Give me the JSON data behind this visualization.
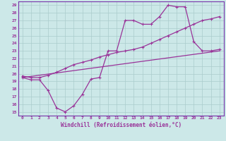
{
  "xlabel": "Windchill (Refroidissement éolien,°C)",
  "bg_color": "#cce8e8",
  "grid_color": "#aacccc",
  "line_color": "#993399",
  "border_color": "#7733aa",
  "xlim": [
    -0.5,
    23.5
  ],
  "ylim": [
    14.5,
    29.5
  ],
  "xticks": [
    0,
    1,
    2,
    3,
    4,
    5,
    6,
    7,
    8,
    9,
    10,
    11,
    12,
    13,
    14,
    15,
    16,
    17,
    18,
    19,
    20,
    21,
    22,
    23
  ],
  "yticks": [
    15,
    16,
    17,
    18,
    19,
    20,
    21,
    22,
    23,
    24,
    25,
    26,
    27,
    28,
    29
  ],
  "line1_x": [
    0,
    1,
    2,
    3,
    4,
    5,
    6,
    7,
    8,
    9,
    10,
    11,
    12,
    13,
    14,
    15,
    16,
    17,
    18,
    19,
    20,
    21,
    22,
    23
  ],
  "line1_y": [
    19.5,
    19.2,
    19.2,
    17.8,
    15.5,
    15.0,
    15.8,
    17.3,
    19.3,
    19.5,
    23.0,
    23.0,
    27.0,
    27.0,
    26.5,
    26.5,
    27.5,
    29.0,
    28.8,
    28.8,
    24.2,
    23.0,
    23.0,
    23.2
  ],
  "line2_x": [
    0,
    1,
    2,
    3,
    4,
    5,
    6,
    7,
    8,
    9,
    10,
    11,
    12,
    13,
    14,
    15,
    16,
    17,
    18,
    19,
    20,
    21,
    22,
    23
  ],
  "line2_y": [
    19.7,
    19.5,
    19.5,
    19.8,
    20.2,
    20.7,
    21.2,
    21.5,
    21.8,
    22.2,
    22.5,
    22.8,
    23.0,
    23.2,
    23.5,
    24.0,
    24.5,
    25.0,
    25.5,
    26.0,
    26.5,
    27.0,
    27.2,
    27.5
  ],
  "line3_x": [
    0,
    23
  ],
  "line3_y": [
    19.5,
    23.0
  ]
}
